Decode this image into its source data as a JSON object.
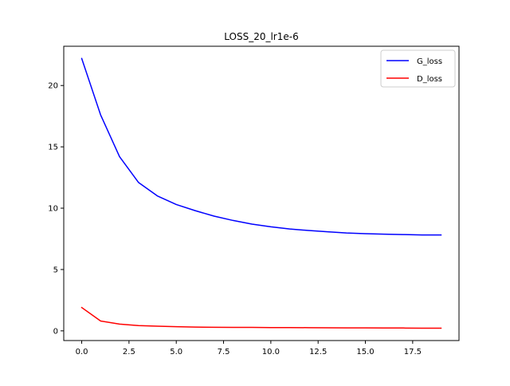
{
  "chart_data": {
    "type": "line",
    "title": "LOSS_20_lr1e-6",
    "xlabel": "",
    "ylabel": "",
    "x": [
      0,
      1,
      2,
      3,
      4,
      5,
      6,
      7,
      8,
      9,
      10,
      11,
      12,
      13,
      14,
      15,
      16,
      17,
      18,
      19
    ],
    "series": [
      {
        "name": "G_loss",
        "color": "#0000ff",
        "values": [
          22.2,
          17.6,
          14.2,
          12.1,
          11.0,
          10.3,
          9.8,
          9.35,
          9.0,
          8.7,
          8.48,
          8.3,
          8.18,
          8.08,
          7.98,
          7.92,
          7.88,
          7.85,
          7.82,
          7.82
        ]
      },
      {
        "name": "D_loss",
        "color": "#ff0000",
        "values": [
          1.9,
          0.8,
          0.55,
          0.43,
          0.38,
          0.34,
          0.31,
          0.29,
          0.28,
          0.28,
          0.27,
          0.27,
          0.26,
          0.25,
          0.24,
          0.24,
          0.23,
          0.23,
          0.22,
          0.22
        ]
      }
    ],
    "xlim": [
      -0.95,
      19.95
    ],
    "ylim": [
      -0.79,
      23.2
    ],
    "xticks": [
      0,
      2.5,
      5,
      7.5,
      10,
      12.5,
      15,
      17.5
    ],
    "xtick_labels": [
      "0.0",
      "2.5",
      "5.0",
      "7.5",
      "10.0",
      "12.5",
      "15.0",
      "17.5"
    ],
    "yticks": [
      0,
      5,
      10,
      15,
      20
    ],
    "ytick_labels": [
      "0",
      "5",
      "10",
      "15",
      "20"
    ],
    "grid": false,
    "legend_position": "top-right"
  }
}
